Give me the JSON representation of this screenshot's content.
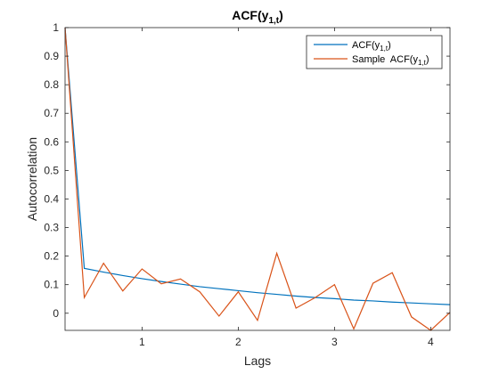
{
  "chart_data": {
    "type": "line",
    "title": "ACF(y",
    "title_sub": "1,t",
    "title_close": ")",
    "xlabel": "Lags",
    "ylabel": "Autocorrelation",
    "xlim": [
      0.2,
      4.2
    ],
    "ylim": [
      -0.06,
      1.0
    ],
    "xticks": [
      1,
      2,
      3,
      4
    ],
    "yticks": [
      0,
      0.1,
      0.2,
      0.3,
      0.4,
      0.5,
      0.6,
      0.7,
      0.8,
      0.9,
      1
    ],
    "legend_position": "top-right",
    "grid": false,
    "series": [
      {
        "legend_main": "ACF(y",
        "legend_sub": "1,t",
        "legend_close": ")",
        "color": "#0072BD",
        "x": [
          0.2,
          0.4,
          0.6,
          0.8,
          1.0,
          1.2,
          1.4,
          1.6,
          1.8,
          2.0,
          2.2,
          2.4,
          2.6,
          2.8,
          3.0,
          3.2,
          3.4,
          3.6,
          3.8,
          4.0,
          4.2
        ],
        "y": [
          1.0,
          0.157,
          0.144,
          0.132,
          0.121,
          0.111,
          0.102,
          0.093,
          0.086,
          0.079,
          0.072,
          0.066,
          0.06,
          0.055,
          0.051,
          0.046,
          0.043,
          0.039,
          0.036,
          0.033,
          0.03
        ]
      },
      {
        "legend_main": "Sample  ACF(y",
        "legend_sub": "1,t",
        "legend_close": ")",
        "color": "#D95319",
        "x": [
          0.2,
          0.4,
          0.6,
          0.8,
          1.0,
          1.2,
          1.4,
          1.6,
          1.8,
          2.0,
          2.2,
          2.4,
          2.6,
          2.8,
          3.0,
          3.2,
          3.4,
          3.6,
          3.8,
          4.0,
          4.2
        ],
        "y": [
          1.0,
          0.055,
          0.175,
          0.078,
          0.155,
          0.103,
          0.12,
          0.075,
          -0.01,
          0.075,
          -0.025,
          0.21,
          0.018,
          0.055,
          0.1,
          -0.055,
          0.105,
          0.142,
          -0.013,
          -0.06,
          0.003
        ]
      }
    ]
  }
}
